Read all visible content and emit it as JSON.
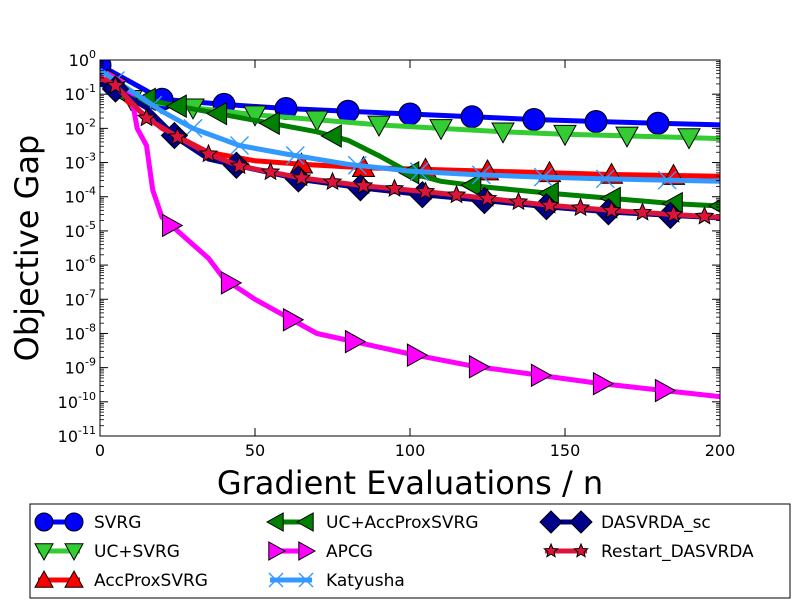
{
  "chart_data": {
    "type": "line",
    "title": "",
    "xlabel": "Gradient Evaluations / n",
    "ylabel": "Objective Gap",
    "xlim": [
      0,
      200
    ],
    "ylim_log10": [
      -11,
      0
    ],
    "y_scale": "log",
    "grid": false,
    "legend_position": "below",
    "x_ticks": [
      "0",
      "50",
      "100",
      "150",
      "200"
    ],
    "y_ticks": [
      {
        "base": "10",
        "exp": "0",
        "e": 0
      },
      {
        "base": "10",
        "exp": "-1",
        "e": -1
      },
      {
        "base": "10",
        "exp": "-2",
        "e": -2
      },
      {
        "base": "10",
        "exp": "-3",
        "e": -3
      },
      {
        "base": "10",
        "exp": "-4",
        "e": -4
      },
      {
        "base": "10",
        "exp": "-5",
        "e": -5
      },
      {
        "base": "10",
        "exp": "-6",
        "e": -6
      },
      {
        "base": "10",
        "exp": "-7",
        "e": -7
      },
      {
        "base": "10",
        "exp": "-8",
        "e": -8
      },
      {
        "base": "10",
        "exp": "-9",
        "e": -9
      },
      {
        "base": "10",
        "exp": "-10",
        "e": -10
      },
      {
        "base": "10",
        "exp": "-11",
        "e": -11
      }
    ],
    "series": [
      {
        "name": "SVRG",
        "color": "#0000ff",
        "marker": "circle",
        "points": [
          [
            0,
            -0.15
          ],
          [
            20,
            -1.15
          ],
          [
            40,
            -1.3
          ],
          [
            60,
            -1.42
          ],
          [
            80,
            -1.5
          ],
          [
            100,
            -1.58
          ],
          [
            120,
            -1.66
          ],
          [
            140,
            -1.74
          ],
          [
            160,
            -1.8
          ],
          [
            180,
            -1.85
          ],
          [
            200,
            -1.9
          ]
        ],
        "markers_x": [
          0,
          20,
          40,
          60,
          80,
          100,
          120,
          140,
          160,
          180
        ]
      },
      {
        "name": "UC+SVRG",
        "color": "#33cc33",
        "marker": "triangle-down",
        "points": [
          [
            0,
            -0.5
          ],
          [
            10,
            -1.15
          ],
          [
            30,
            -1.4
          ],
          [
            50,
            -1.6
          ],
          [
            70,
            -1.75
          ],
          [
            90,
            -1.9
          ],
          [
            110,
            -2.0
          ],
          [
            130,
            -2.1
          ],
          [
            150,
            -2.17
          ],
          [
            170,
            -2.22
          ],
          [
            190,
            -2.27
          ],
          [
            200,
            -2.3
          ]
        ],
        "markers_x": [
          10,
          30,
          50,
          70,
          90,
          110,
          130,
          150,
          170,
          190
        ]
      },
      {
        "name": "AccProxSVRG",
        "color": "#ff0000",
        "marker": "triangle-up",
        "points": [
          [
            0,
            -0.5
          ],
          [
            10,
            -1.3
          ],
          [
            20,
            -2.0
          ],
          [
            35,
            -2.7
          ],
          [
            50,
            -2.95
          ],
          [
            65,
            -3.05
          ],
          [
            85,
            -3.15
          ],
          [
            105,
            -3.2
          ],
          [
            125,
            -3.25
          ],
          [
            145,
            -3.3
          ],
          [
            165,
            -3.35
          ],
          [
            185,
            -3.38
          ],
          [
            200,
            -3.4
          ]
        ],
        "markers_x": [
          65,
          85,
          105,
          125,
          145,
          165,
          185
        ]
      },
      {
        "name": "UC+AccProxSVRG",
        "color": "#008000",
        "marker": "triangle-left",
        "points": [
          [
            0,
            -0.7
          ],
          [
            10,
            -1.05
          ],
          [
            25,
            -1.35
          ],
          [
            40,
            -1.6
          ],
          [
            55,
            -1.85
          ],
          [
            70,
            -2.1
          ],
          [
            80,
            -2.35
          ],
          [
            90,
            -2.8
          ],
          [
            100,
            -3.3
          ],
          [
            110,
            -3.55
          ],
          [
            125,
            -3.72
          ],
          [
            145,
            -3.9
          ],
          [
            165,
            -4.05
          ],
          [
            185,
            -4.2
          ],
          [
            200,
            -4.27
          ]
        ],
        "markers_x": [
          5,
          15,
          25,
          38,
          55,
          75,
          100,
          120,
          145,
          165,
          185,
          200
        ]
      },
      {
        "name": "APCG",
        "color": "#ff00ff",
        "marker": "triangle-right",
        "points": [
          [
            0,
            -0.3
          ],
          [
            5,
            -0.6
          ],
          [
            10,
            -1.0
          ],
          [
            12,
            -2.0
          ],
          [
            15,
            -2.5
          ],
          [
            17,
            -3.8
          ],
          [
            20,
            -4.6
          ],
          [
            25,
            -5.0
          ],
          [
            30,
            -5.4
          ],
          [
            35,
            -5.8
          ],
          [
            40,
            -6.4
          ],
          [
            50,
            -7.0
          ],
          [
            60,
            -7.5
          ],
          [
            70,
            -8.0
          ],
          [
            85,
            -8.3
          ],
          [
            100,
            -8.6
          ],
          [
            120,
            -8.95
          ],
          [
            140,
            -9.2
          ],
          [
            160,
            -9.45
          ],
          [
            180,
            -9.65
          ],
          [
            200,
            -9.85
          ]
        ],
        "markers_x": [
          5,
          23,
          42,
          62,
          82,
          102,
          122,
          142,
          162,
          182
        ]
      },
      {
        "name": "Katyusha",
        "color": "#3399ff",
        "marker": "x",
        "points": [
          [
            0,
            -0.3
          ],
          [
            10,
            -0.9
          ],
          [
            20,
            -1.5
          ],
          [
            30,
            -2.0
          ],
          [
            45,
            -2.5
          ],
          [
            60,
            -2.75
          ],
          [
            80,
            -3.05
          ],
          [
            100,
            -3.25
          ],
          [
            120,
            -3.35
          ],
          [
            140,
            -3.42
          ],
          [
            160,
            -3.47
          ],
          [
            180,
            -3.51
          ],
          [
            200,
            -3.55
          ]
        ],
        "markers_x": [
          5,
          17,
          30,
          45,
          63,
          83,
          103,
          123,
          143,
          163,
          183
        ]
      },
      {
        "name": "DASVRDA_sc",
        "color": "#00008b",
        "marker": "diamond",
        "points": [
          [
            0,
            -0.7
          ],
          [
            5,
            -0.85
          ],
          [
            15,
            -1.4
          ],
          [
            25,
            -2.3
          ],
          [
            35,
            -2.9
          ],
          [
            45,
            -3.1
          ],
          [
            65,
            -3.5
          ],
          [
            85,
            -3.75
          ],
          [
            105,
            -3.95
          ],
          [
            125,
            -4.12
          ],
          [
            145,
            -4.3
          ],
          [
            165,
            -4.45
          ],
          [
            185,
            -4.55
          ],
          [
            200,
            -4.62
          ]
        ],
        "markers_x": [
          5,
          24,
          44,
          64,
          84,
          104,
          124,
          144,
          164,
          184
        ]
      },
      {
        "name": "Restart_DASVRDA",
        "color": "#dc143c",
        "marker": "star",
        "points": [
          [
            0,
            -0.5
          ],
          [
            5,
            -0.75
          ],
          [
            15,
            -1.7
          ],
          [
            25,
            -2.25
          ],
          [
            35,
            -2.75
          ],
          [
            45,
            -3.1
          ],
          [
            65,
            -3.45
          ],
          [
            85,
            -3.68
          ],
          [
            105,
            -3.85
          ],
          [
            125,
            -4.05
          ],
          [
            145,
            -4.25
          ],
          [
            165,
            -4.4
          ],
          [
            185,
            -4.52
          ],
          [
            200,
            -4.6
          ]
        ],
        "markers_x": [
          5,
          15,
          25,
          35,
          45,
          55,
          65,
          75,
          85,
          95,
          105,
          115,
          125,
          135,
          145,
          155,
          165,
          175,
          185,
          195
        ]
      }
    ]
  }
}
